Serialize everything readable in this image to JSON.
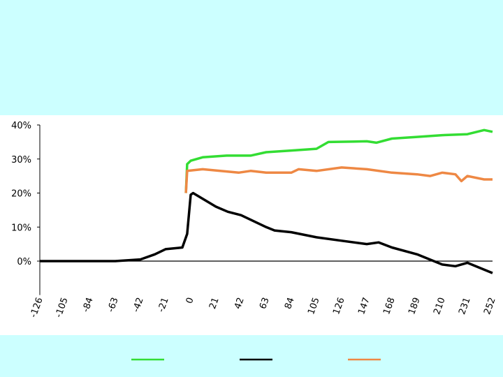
{
  "chart_data": {
    "type": "line",
    "xlim": [
      -126,
      252
    ],
    "xticks": [
      -126,
      -105,
      -84,
      -63,
      -42,
      -21,
      0,
      21,
      42,
      63,
      84,
      105,
      126,
      147,
      168,
      189,
      210,
      231,
      252
    ],
    "ylim": [
      -10,
      40
    ],
    "yticks": [
      {
        "value": 0,
        "label": "0%"
      },
      {
        "value": 10,
        "label": "10%"
      },
      {
        "value": 20,
        "label": "20%"
      },
      {
        "value": 30,
        "label": "30%"
      },
      {
        "value": 40,
        "label": "40%"
      }
    ],
    "series": [
      {
        "color": "#33dd33",
        "x": [
          -4,
          -3,
          0,
          10,
          30,
          50,
          63,
          84,
          105,
          115,
          147,
          155,
          168,
          189,
          210,
          231,
          245,
          252
        ],
        "values": [
          20,
          28.5,
          29.5,
          30.5,
          31,
          31,
          32,
          32.5,
          33,
          35,
          35.2,
          34.8,
          36,
          36.5,
          37,
          37.3,
          38.5,
          38
        ]
      },
      {
        "color": "#000000",
        "x": [
          -126,
          -105,
          -84,
          -63,
          -42,
          -30,
          -21,
          -7,
          -3,
          0,
          2,
          21,
          31,
          42,
          63,
          70,
          84,
          105,
          126,
          147,
          157,
          168,
          189,
          210,
          221,
          231,
          252
        ],
        "values": [
          0,
          0,
          0,
          0,
          0.5,
          2,
          3.5,
          4,
          8,
          19.5,
          20,
          16,
          14.5,
          13.5,
          10,
          9,
          8.5,
          7,
          6,
          5,
          5.5,
          4,
          2,
          -1,
          -1.5,
          -0.5,
          -3.5
        ]
      },
      {
        "color": "#ee8844",
        "x": [
          -4,
          -3,
          10,
          40,
          50,
          63,
          84,
          90,
          105,
          126,
          147,
          168,
          189,
          200,
          210,
          221,
          226,
          231,
          245,
          252
        ],
        "values": [
          20,
          26.5,
          27,
          26,
          26.5,
          26,
          26,
          27,
          26.5,
          27.5,
          27,
          26,
          25.5,
          25,
          26,
          25.5,
          23.5,
          25,
          24,
          24
        ]
      }
    ]
  }
}
